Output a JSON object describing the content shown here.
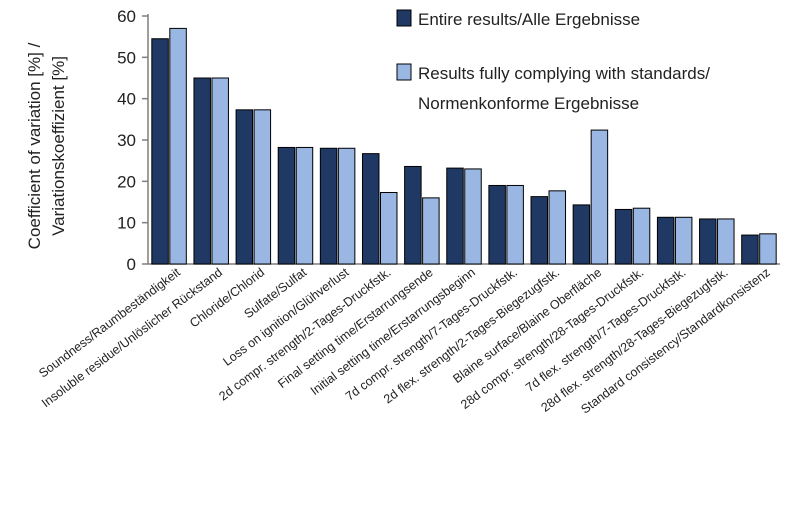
{
  "chart_data": {
    "type": "bar",
    "title": "",
    "xlabel": "",
    "ylabel": [
      "Coefficient of variation [%] /",
      "Variationskoeffizient  [%]"
    ],
    "ylim": [
      0,
      60
    ],
    "yticks": [
      0,
      10,
      20,
      30,
      40,
      50,
      60
    ],
    "grid": false,
    "legend_position": "top-right",
    "categories": [
      "Soundness/Raumbeständigkeit",
      "Insoluble residue/Unlöslicher Rückstand",
      "Chloride/Chlorid",
      "Sulfate/Sulfat",
      "Loss on ignition/Glühverlust",
      "2d compr. strength/2-Tages-Druckfstk.",
      "Final setting time/Erstarrungsende",
      "Initial setting time/Erstarrungsbeginn",
      "7d compr. strength/7-Tages-Druckfstk.",
      "2d flex. strength/2-Tages-Biegezugfstk.",
      "Blaine surface/Blaine  Oberfläche",
      "28d compr. strength/28-Tages-Druckfstk.",
      "7d flex. strength/7-Tages-Druckfstk.",
      "28d flex. strength/28-Tages-Biegezugfstk.",
      "Standard consistency/Standardkonsistenz"
    ],
    "series": [
      {
        "name": "Entire results/Alle Ergebnisse",
        "color": "#1f3864",
        "values": [
          54.5,
          45,
          37.3,
          28.2,
          28,
          26.7,
          23.6,
          23.2,
          19,
          16.3,
          14.3,
          13.2,
          11.3,
          10.9,
          7
        ]
      },
      {
        "name": "Results fully complying with standards/ Normenkonforme  Ergebnisse",
        "color": "#9ab7e4",
        "values": [
          57,
          45,
          37.3,
          28.2,
          28,
          17.3,
          16,
          23,
          19,
          17.7,
          32.4,
          13.5,
          11.3,
          10.9,
          7.3
        ]
      }
    ]
  }
}
